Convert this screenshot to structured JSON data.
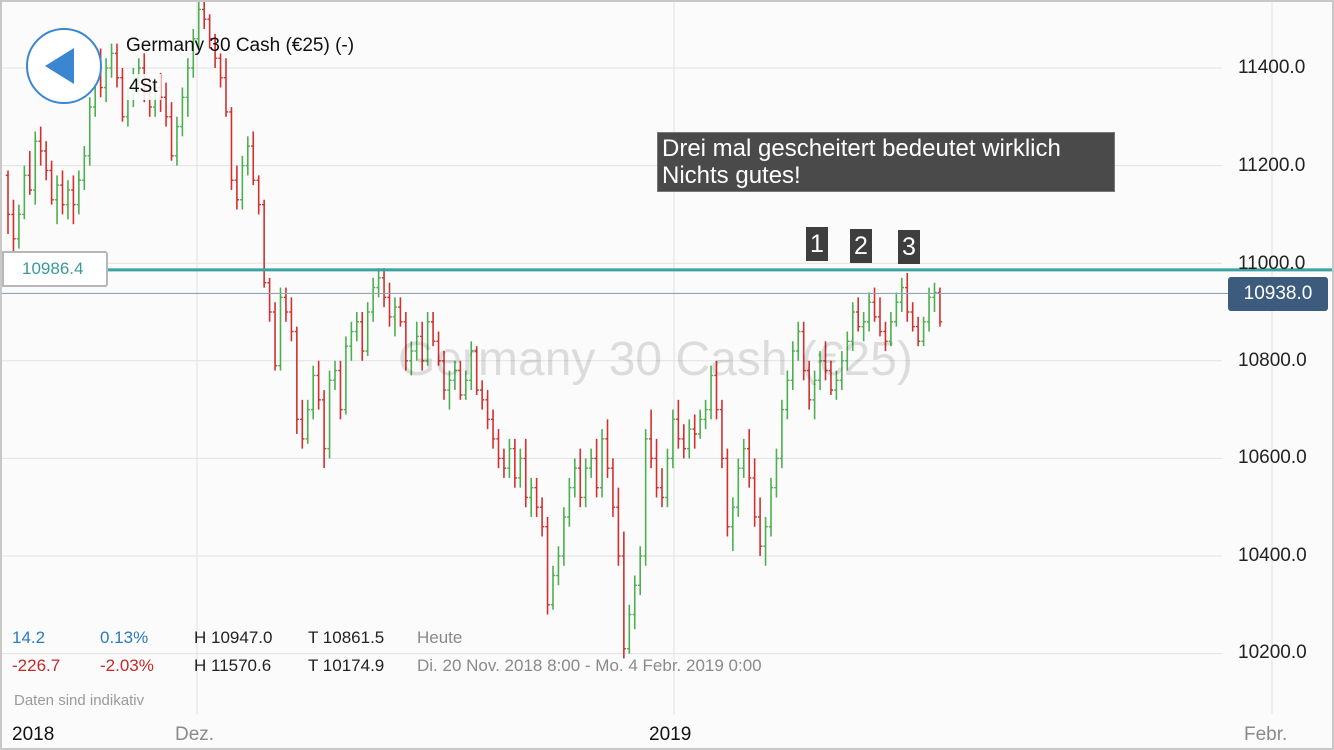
{
  "instrument": {
    "title": "Germany 30 Cash (€25) (-)",
    "timeframe": "4St",
    "watermark": "Germany 30 Cash (€25)"
  },
  "annotation": {
    "line1": "Drei mal gescheitert bedeutet wirklich",
    "line2": "Nichts gutes!"
  },
  "markers": [
    "1",
    "2",
    "3"
  ],
  "level_label": "10986.4",
  "current_price": "10938.0",
  "y_ticks": [
    "11400.0",
    "11200.0",
    "11000.0",
    "10800.0",
    "10600.0",
    "10400.0",
    "10200.0"
  ],
  "x_ticks": [
    "2018",
    "Dez.",
    "2019",
    "Febr."
  ],
  "stats": {
    "today": {
      "change": "14.2",
      "pct": "0.13%",
      "high": "H 10947.0",
      "low": "T 10861.5",
      "label": "Heute"
    },
    "range": {
      "change": "-226.7",
      "pct": "-2.03%",
      "high": "H 11570.6",
      "low": "T 10174.9",
      "label": "Di. 20 Nov. 2018 8:00 - Mo. 4 Febr. 2019 0:00"
    }
  },
  "disclaimer": "Daten sind indikativ",
  "colors": {
    "up": "#4caf50",
    "down": "#d32f2f",
    "level_line": "#3aa3a3",
    "price_line": "#8fa4b4",
    "accent": "#3b86d2",
    "price_box": "#3c5b7d",
    "positive_text": "#2b7bbf",
    "negative_text": "#c62828"
  },
  "chart_data": {
    "type": "ohlc",
    "title": "Germany 30 Cash (€25)",
    "timeframe": "4 hours",
    "ylim": [
      10140,
      11560
    ],
    "horizontal_lines": [
      {
        "name": "resistance",
        "value": 10986.4
      },
      {
        "name": "last_price",
        "value": 10938.0
      }
    ],
    "bars": [
      [
        11180,
        11190,
        11060,
        11100
      ],
      [
        11100,
        11130,
        11020,
        11050
      ],
      [
        11050,
        11120,
        11030,
        11100
      ],
      [
        11100,
        11200,
        11090,
        11180
      ],
      [
        11180,
        11230,
        11140,
        11150
      ],
      [
        11150,
        11270,
        11120,
        11250
      ],
      [
        11250,
        11280,
        11200,
        11230
      ],
      [
        11230,
        11250,
        11170,
        11190
      ],
      [
        11190,
        11210,
        11120,
        11130
      ],
      [
        11130,
        11180,
        11080,
        11160
      ],
      [
        11160,
        11190,
        11100,
        11120
      ],
      [
        11120,
        11170,
        11090,
        11150
      ],
      [
        11150,
        11180,
        11080,
        11120
      ],
      [
        11120,
        11190,
        11100,
        11170
      ],
      [
        11170,
        11240,
        11150,
        11220
      ],
      [
        11220,
        11340,
        11200,
        11320
      ],
      [
        11320,
        11420,
        11300,
        11400
      ],
      [
        11400,
        11440,
        11340,
        11360
      ],
      [
        11360,
        11420,
        11330,
        11400
      ],
      [
        11400,
        11450,
        11380,
        11430
      ],
      [
        11430,
        11450,
        11360,
        11380
      ],
      [
        11380,
        11400,
        11290,
        11300
      ],
      [
        11300,
        11360,
        11280,
        11340
      ],
      [
        11340,
        11400,
        11320,
        11380
      ],
      [
        11380,
        11420,
        11350,
        11400
      ],
      [
        11400,
        11430,
        11330,
        11350
      ],
      [
        11350,
        11380,
        11300,
        11320
      ],
      [
        11320,
        11380,
        11300,
        11360
      ],
      [
        11360,
        11390,
        11310,
        11340
      ],
      [
        11340,
        11370,
        11280,
        11300
      ],
      [
        11300,
        11330,
        11210,
        11220
      ],
      [
        11220,
        11300,
        11200,
        11280
      ],
      [
        11280,
        11360,
        11260,
        11340
      ],
      [
        11340,
        11420,
        11300,
        11400
      ],
      [
        11400,
        11480,
        11380,
        11460
      ],
      [
        11460,
        11540,
        11440,
        11520
      ],
      [
        11520,
        11560,
        11480,
        11500
      ],
      [
        11500,
        11510,
        11440,
        11460
      ],
      [
        11460,
        11470,
        11400,
        11420
      ],
      [
        11420,
        11430,
        11360,
        11380
      ],
      [
        11380,
        11420,
        11300,
        11310
      ],
      [
        11310,
        11320,
        11150,
        11170
      ],
      [
        11170,
        11200,
        11110,
        11130
      ],
      [
        11130,
        11220,
        11110,
        11200
      ],
      [
        11200,
        11260,
        11180,
        11240
      ],
      [
        11240,
        11270,
        11160,
        11170
      ],
      [
        11170,
        11180,
        11100,
        11120
      ],
      [
        11120,
        11130,
        10950,
        10960
      ],
      [
        10960,
        10970,
        10880,
        10900
      ],
      [
        10900,
        10920,
        10780,
        10790
      ],
      [
        10790,
        10950,
        10780,
        10930
      ],
      [
        10930,
        10950,
        10880,
        10900
      ],
      [
        10900,
        10930,
        10840,
        10860
      ],
      [
        10860,
        10870,
        10650,
        10680
      ],
      [
        10680,
        10720,
        10620,
        10640
      ],
      [
        10640,
        10720,
        10630,
        10700
      ],
      [
        10700,
        10790,
        10680,
        10770
      ],
      [
        10770,
        10800,
        10700,
        10720
      ],
      [
        10720,
        10740,
        10580,
        10620
      ],
      [
        10620,
        10780,
        10600,
        10760
      ],
      [
        10760,
        10800,
        10740,
        10780
      ],
      [
        10780,
        10800,
        10680,
        10700
      ],
      [
        10700,
        10850,
        10690,
        10830
      ],
      [
        10830,
        10880,
        10800,
        10860
      ],
      [
        10860,
        10900,
        10840,
        10880
      ],
      [
        10880,
        10900,
        10800,
        10820
      ],
      [
        10820,
        10920,
        10810,
        10900
      ],
      [
        10900,
        10970,
        10880,
        10950
      ],
      [
        10950,
        10990,
        10930,
        10970
      ],
      [
        10970,
        10990,
        10910,
        10930
      ],
      [
        10930,
        10960,
        10870,
        10890
      ],
      [
        10890,
        10930,
        10850,
        10910
      ],
      [
        10910,
        10930,
        10870,
        10880
      ],
      [
        10880,
        10900,
        10780,
        10800
      ],
      [
        10800,
        10840,
        10770,
        10820
      ],
      [
        10820,
        10880,
        10800,
        10850
      ],
      [
        10850,
        10880,
        10780,
        10800
      ],
      [
        10800,
        10900,
        10790,
        10880
      ],
      [
        10880,
        10900,
        10830,
        10840
      ],
      [
        10840,
        10860,
        10790,
        10800
      ],
      [
        10800,
        10820,
        10720,
        10740
      ],
      [
        10740,
        10780,
        10700,
        10760
      ],
      [
        10760,
        10800,
        10740,
        10780
      ],
      [
        10780,
        10800,
        10720,
        10730
      ],
      [
        10730,
        10780,
        10720,
        10760
      ],
      [
        10760,
        10840,
        10740,
        10820
      ],
      [
        10820,
        10830,
        10730,
        10740
      ],
      [
        10740,
        10760,
        10700,
        10720
      ],
      [
        10720,
        10740,
        10660,
        10680
      ],
      [
        10680,
        10700,
        10620,
        10640
      ],
      [
        10640,
        10660,
        10580,
        10600
      ],
      [
        10600,
        10620,
        10560,
        10580
      ],
      [
        10580,
        10640,
        10560,
        10620
      ],
      [
        10620,
        10640,
        10540,
        10560
      ],
      [
        10560,
        10620,
        10540,
        10600
      ],
      [
        10600,
        10640,
        10500,
        10520
      ],
      [
        10520,
        10560,
        10480,
        10540
      ],
      [
        10540,
        10560,
        10480,
        10500
      ],
      [
        10500,
        10520,
        10440,
        10460
      ],
      [
        10460,
        10480,
        10280,
        10300
      ],
      [
        10300,
        10380,
        10290,
        10360
      ],
      [
        10360,
        10420,
        10340,
        10400
      ],
      [
        10400,
        10500,
        10380,
        10480
      ],
      [
        10480,
        10560,
        10460,
        10540
      ],
      [
        10540,
        10600,
        10520,
        10580
      ],
      [
        10580,
        10620,
        10500,
        10520
      ],
      [
        10520,
        10600,
        10500,
        10580
      ],
      [
        10580,
        10620,
        10560,
        10600
      ],
      [
        10600,
        10640,
        10520,
        10540
      ],
      [
        10540,
        10660,
        10520,
        10640
      ],
      [
        10640,
        10680,
        10560,
        10580
      ],
      [
        10580,
        10600,
        10480,
        10500
      ],
      [
        10500,
        10540,
        10380,
        10400
      ],
      [
        10400,
        10450,
        10190,
        10210
      ],
      [
        10210,
        10300,
        10200,
        10280
      ],
      [
        10280,
        10360,
        10250,
        10340
      ],
      [
        10340,
        10420,
        10320,
        10400
      ],
      [
        10400,
        10660,
        10380,
        10640
      ],
      [
        10640,
        10700,
        10580,
        10600
      ],
      [
        10600,
        10640,
        10520,
        10540
      ],
      [
        10540,
        10580,
        10500,
        10520
      ],
      [
        10520,
        10620,
        10500,
        10600
      ],
      [
        10600,
        10700,
        10580,
        10680
      ],
      [
        10680,
        10720,
        10620,
        10640
      ],
      [
        10640,
        10670,
        10600,
        10620
      ],
      [
        10620,
        10680,
        10600,
        10660
      ],
      [
        10660,
        10690,
        10620,
        10650
      ],
      [
        10650,
        10700,
        10640,
        10680
      ],
      [
        10680,
        10720,
        10660,
        10700
      ],
      [
        10700,
        10790,
        10680,
        10770
      ],
      [
        10770,
        10800,
        10680,
        10700
      ],
      [
        10700,
        10720,
        10580,
        10600
      ],
      [
        10600,
        10620,
        10440,
        10460
      ],
      [
        10460,
        10520,
        10410,
        10500
      ],
      [
        10500,
        10600,
        10480,
        10580
      ],
      [
        10580,
        10640,
        10560,
        10620
      ],
      [
        10620,
        10660,
        10540,
        10560
      ],
      [
        10560,
        10600,
        10460,
        10480
      ],
      [
        10480,
        10520,
        10400,
        10420
      ],
      [
        10420,
        10480,
        10380,
        10460
      ],
      [
        10460,
        10560,
        10440,
        10540
      ],
      [
        10540,
        10620,
        10520,
        10600
      ],
      [
        10600,
        10720,
        10580,
        10700
      ],
      [
        10700,
        10780,
        10680,
        10760
      ],
      [
        10760,
        10840,
        10740,
        10820
      ],
      [
        10820,
        10880,
        10800,
        10860
      ],
      [
        10860,
        10880,
        10760,
        10780
      ],
      [
        10780,
        10800,
        10700,
        10720
      ],
      [
        10720,
        10780,
        10680,
        10760
      ],
      [
        10760,
        10820,
        10740,
        10800
      ],
      [
        10800,
        10840,
        10760,
        10780
      ],
      [
        10780,
        10800,
        10730,
        10740
      ],
      [
        10740,
        10780,
        10720,
        10760
      ],
      [
        10760,
        10820,
        10740,
        10800
      ],
      [
        10800,
        10860,
        10780,
        10840
      ],
      [
        10840,
        10920,
        10820,
        10900
      ],
      [
        10900,
        10930,
        10860,
        10870
      ],
      [
        10870,
        10900,
        10840,
        10880
      ],
      [
        10880,
        10940,
        10860,
        10920
      ],
      [
        10920,
        10950,
        10880,
        10890
      ],
      [
        10890,
        10930,
        10850,
        10860
      ],
      [
        10860,
        10880,
        10820,
        10840
      ],
      [
        10840,
        10900,
        10830,
        10880
      ],
      [
        10880,
        10940,
        10870,
        10920
      ],
      [
        10920,
        10970,
        10900,
        10950
      ],
      [
        10950,
        10980,
        10880,
        10900
      ],
      [
        10900,
        10920,
        10860,
        10870
      ],
      [
        10870,
        10890,
        10830,
        10840
      ],
      [
        10840,
        10890,
        10830,
        10880
      ],
      [
        10880,
        10950,
        10860,
        10930
      ],
      [
        10930,
        10960,
        10900,
        10940
      ],
      [
        10940,
        10950,
        10870,
        10880
      ]
    ]
  }
}
